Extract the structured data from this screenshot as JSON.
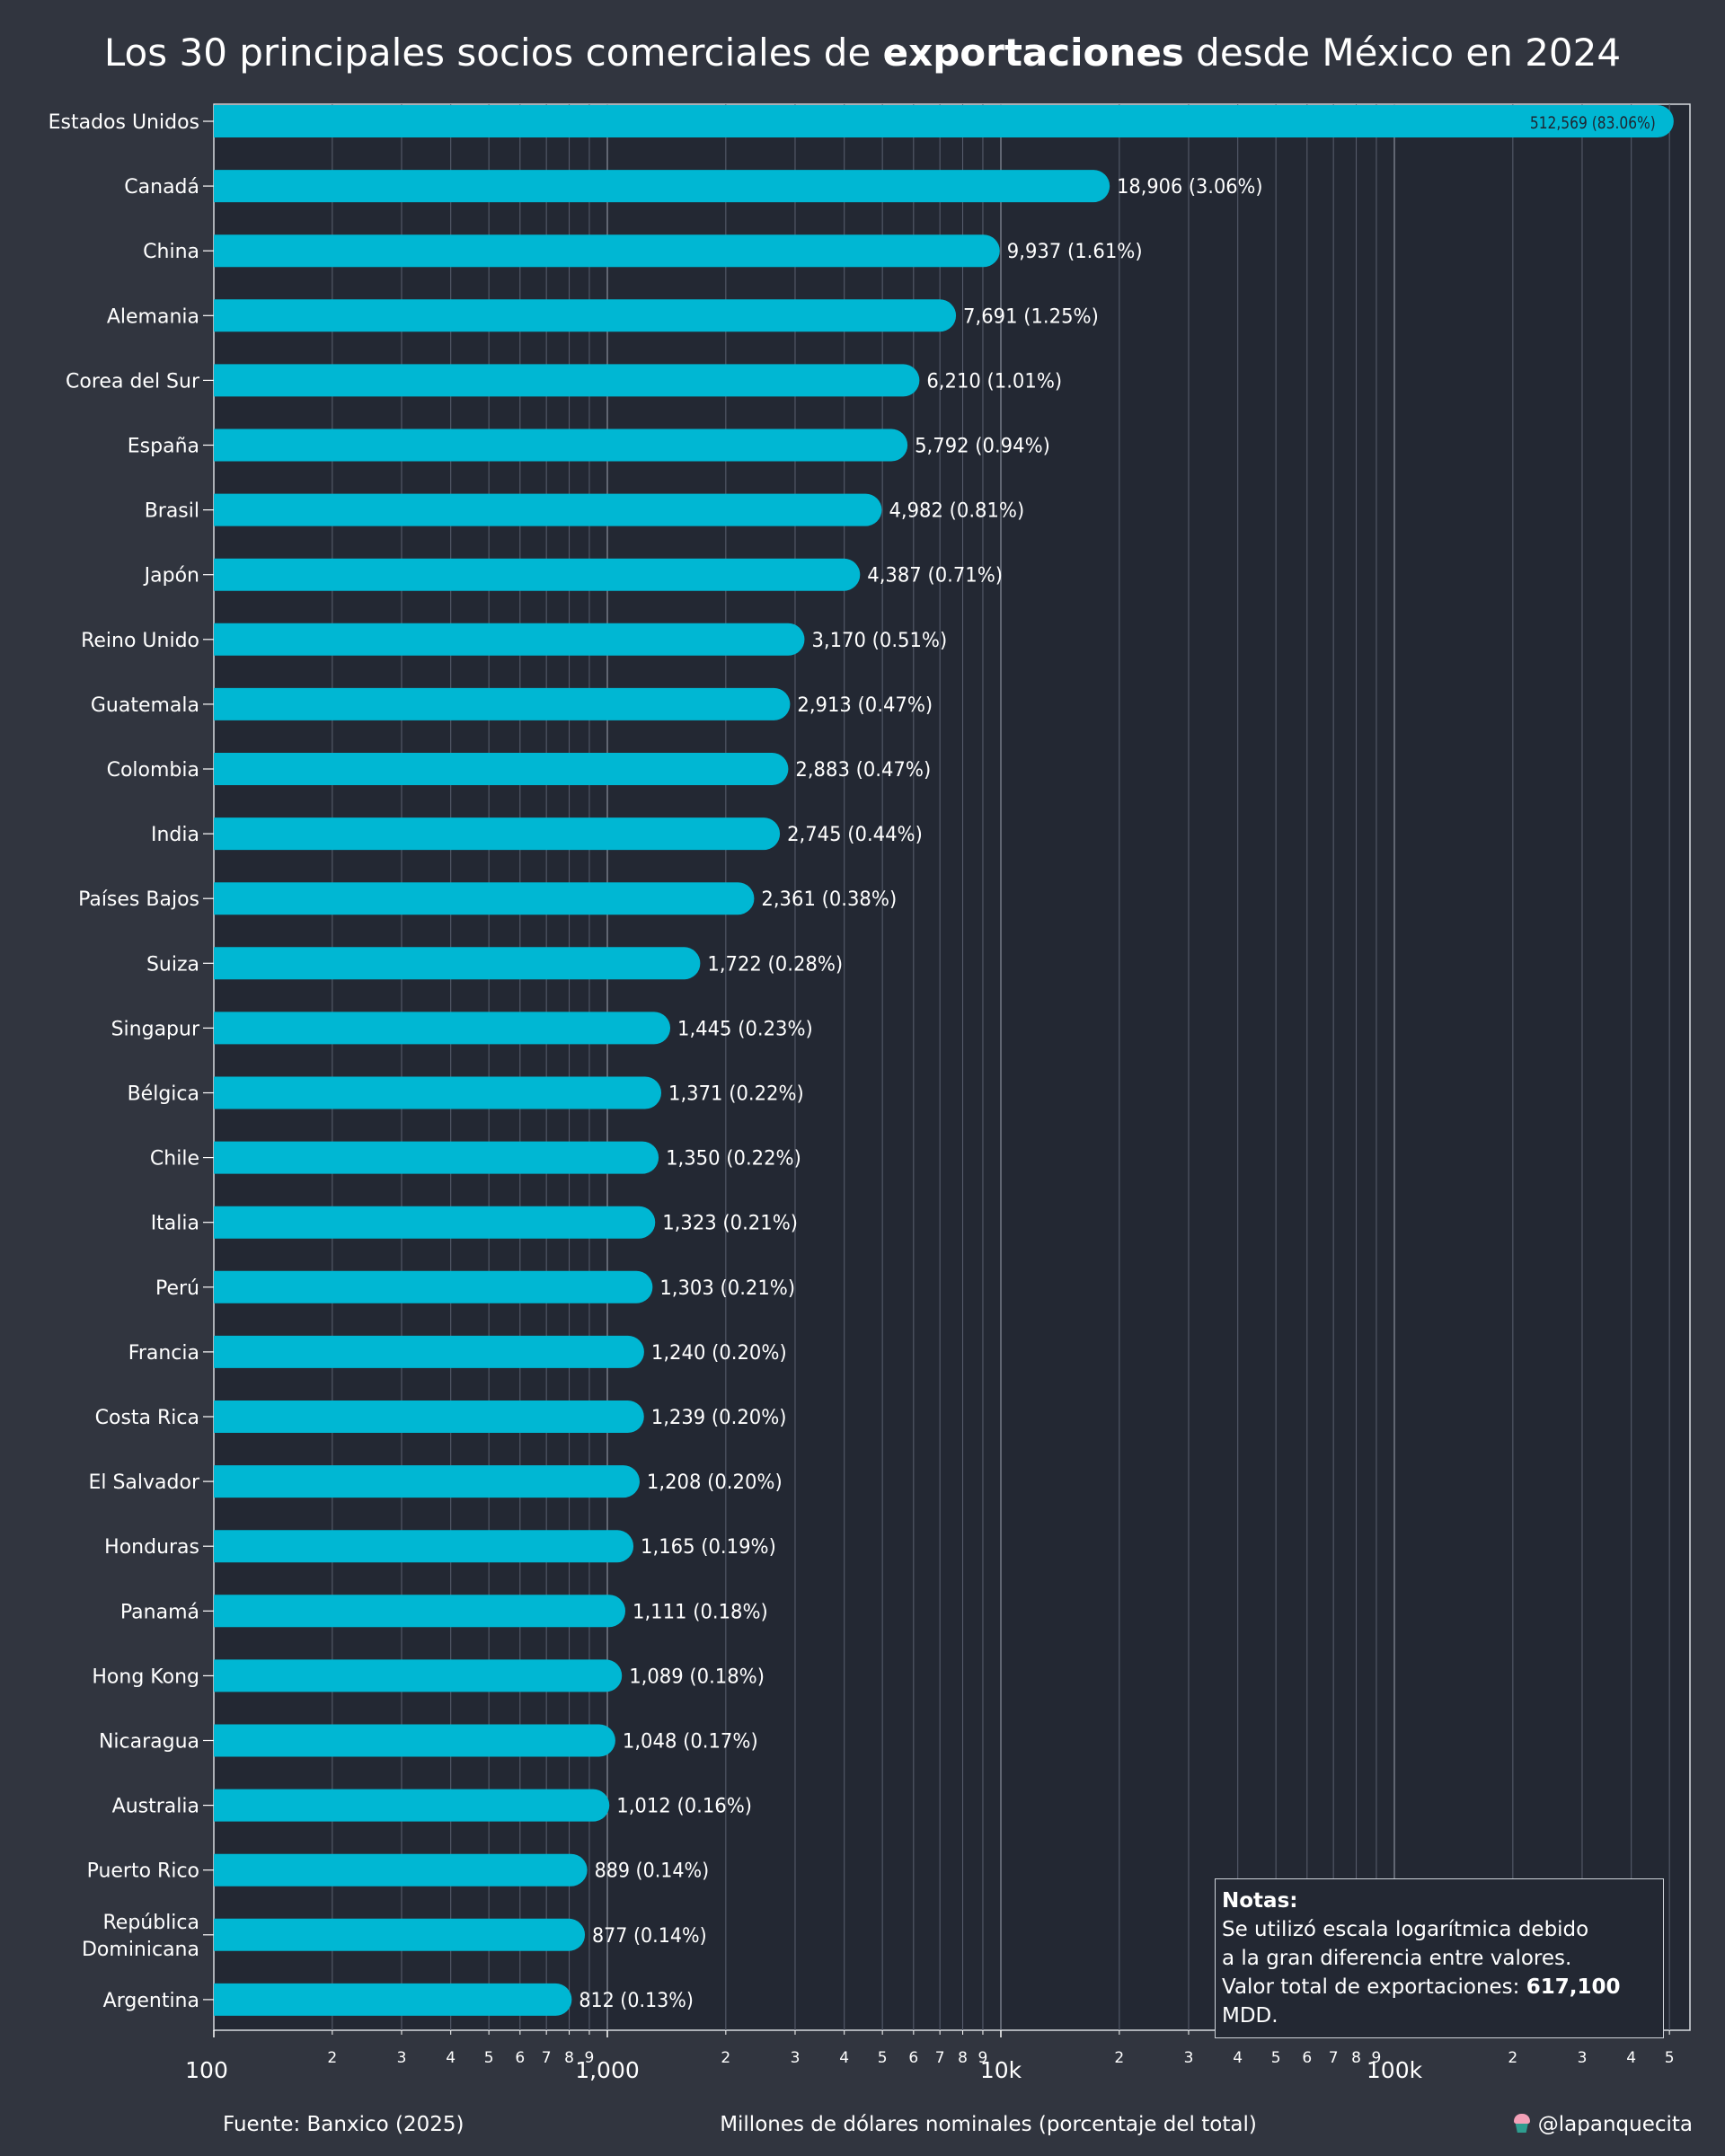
{
  "title": {
    "prefix": "Los 30 principales socios comerciales de ",
    "bold": "exportaciones",
    "suffix": " desde México en 2024"
  },
  "colors": {
    "background": "#31353f",
    "plot_background": "#232833",
    "bar": "#00b7d3",
    "grid": "#5a6070",
    "text": "#ffffff"
  },
  "chart_data": {
    "type": "bar",
    "orientation": "horizontal",
    "x_scale": "log",
    "xlim": [
      100,
      550000
    ],
    "grid": true,
    "xlabel": "Millones de dólares nominales (porcentaje del total)",
    "major_ticks": [
      {
        "value": 100,
        "label": "100"
      },
      {
        "value": 1000,
        "label": "1,000"
      },
      {
        "value": 10000,
        "label": "10k"
      },
      {
        "value": 100000,
        "label": "100k"
      }
    ],
    "minor_tick_labels": [
      "2",
      "3",
      "4",
      "5",
      "6",
      "7",
      "8",
      "9"
    ],
    "categories": [
      {
        "name": "Estados Unidos",
        "value": 512569,
        "label": "512,569 (83.06%)"
      },
      {
        "name": "Canadá",
        "value": 18906,
        "label": "18,906 (3.06%)"
      },
      {
        "name": "China",
        "value": 9937,
        "label": "9,937 (1.61%)"
      },
      {
        "name": "Alemania",
        "value": 7691,
        "label": "7,691 (1.25%)"
      },
      {
        "name": "Corea del Sur",
        "value": 6210,
        "label": "6,210 (1.01%)"
      },
      {
        "name": "España",
        "value": 5792,
        "label": "5,792 (0.94%)"
      },
      {
        "name": "Brasil",
        "value": 4982,
        "label": "4,982 (0.81%)"
      },
      {
        "name": "Japón",
        "value": 4387,
        "label": "4,387 (0.71%)"
      },
      {
        "name": "Reino Unido",
        "value": 3170,
        "label": "3,170 (0.51%)"
      },
      {
        "name": "Guatemala",
        "value": 2913,
        "label": "2,913 (0.47%)"
      },
      {
        "name": "Colombia",
        "value": 2883,
        "label": "2,883 (0.47%)"
      },
      {
        "name": "India",
        "value": 2745,
        "label": "2,745 (0.44%)"
      },
      {
        "name": "Países Bajos",
        "value": 2361,
        "label": "2,361 (0.38%)"
      },
      {
        "name": "Suiza",
        "value": 1722,
        "label": "1,722 (0.28%)"
      },
      {
        "name": "Singapur",
        "value": 1445,
        "label": "1,445 (0.23%)"
      },
      {
        "name": "Bélgica",
        "value": 1371,
        "label": "1,371 (0.22%)"
      },
      {
        "name": "Chile",
        "value": 1350,
        "label": "1,350 (0.22%)"
      },
      {
        "name": "Italia",
        "value": 1323,
        "label": "1,323 (0.21%)"
      },
      {
        "name": "Perú",
        "value": 1303,
        "label": "1,303 (0.21%)"
      },
      {
        "name": "Francia",
        "value": 1240,
        "label": "1,240 (0.20%)"
      },
      {
        "name": "Costa Rica",
        "value": 1239,
        "label": "1,239 (0.20%)"
      },
      {
        "name": "El Salvador",
        "value": 1208,
        "label": "1,208 (0.20%)"
      },
      {
        "name": "Honduras",
        "value": 1165,
        "label": "1,165 (0.19%)"
      },
      {
        "name": "Panamá",
        "value": 1111,
        "label": "1,111 (0.18%)"
      },
      {
        "name": "Hong Kong",
        "value": 1089,
        "label": "1,089 (0.18%)"
      },
      {
        "name": "Nicaragua",
        "value": 1048,
        "label": "1,048 (0.17%)"
      },
      {
        "name": "Australia",
        "value": 1012,
        "label": "1,012 (0.16%)"
      },
      {
        "name": "Puerto Rico",
        "value": 889,
        "label": "889 (0.14%)"
      },
      {
        "name": "República Dominicana",
        "value": 877,
        "label": "877 (0.14%)"
      },
      {
        "name": "Argentina",
        "value": 812,
        "label": "812 (0.13%)"
      }
    ]
  },
  "notes": {
    "title": "Notas:",
    "line1": "Se utilizó escala logarítmica debido",
    "line2": "a la gran diferencia entre valores.",
    "line3_prefix": "Valor total de exportaciones: ",
    "line3_bold": "617,100",
    "line3_suffix": " MDD."
  },
  "footer": {
    "source": "Fuente: Banxico (2025)",
    "handle": "@lapanquecita"
  }
}
